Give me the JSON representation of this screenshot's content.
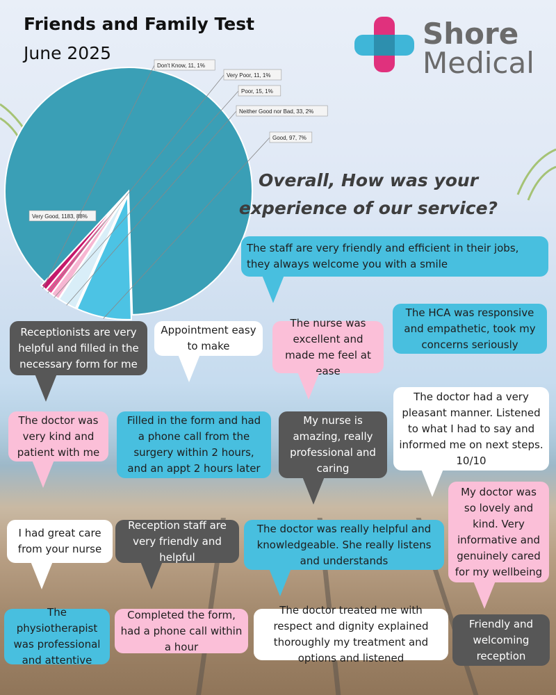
{
  "header": {
    "title": "Friends and Family Test",
    "subtitle": "June 2025"
  },
  "logo": {
    "line1": "Shore",
    "line2": "Medical",
    "cross_colors": [
      "#e0317d",
      "#3fb6d8"
    ]
  },
  "question": {
    "line1": "Overall, How was your",
    "line2": "experience of our service?"
  },
  "chart_data": {
    "type": "pie",
    "slices": [
      {
        "label": "Very Good, 1183, 88%",
        "value": 1183,
        "color": "#3a9fb6"
      },
      {
        "label": "Good, 97, 7%",
        "value": 97,
        "color": "#4cc3e4"
      },
      {
        "label": "Neither Good nor Bad, 33, 2%",
        "value": 33,
        "color": "#d9eef8"
      },
      {
        "label": "Poor, 15, 1%",
        "value": 15,
        "color": "#f7b6d2"
      },
      {
        "label": "Very Poor, 11, 1%",
        "value": 11,
        "color": "#e84f93"
      },
      {
        "label": "Don't Know, 11, 1%",
        "value": 11,
        "color": "#c4186a"
      }
    ]
  },
  "comments": [
    "The staff are very friendly and efficient in their jobs, they always welcome you with a smile",
    "The HCA was responsive and empathetic, took my concerns seriously",
    "Receptionists are very helpful and filled in the necessary form for me",
    "Appointment easy to make",
    "The nurse was excellent and made me feel at ease",
    "The doctor had a very pleasant manner. Listened to what I had to say and informed me on next steps. 10/10",
    "The doctor was very kind and patient with me",
    "Filled in the form and had a phone call from the surgery within 2 hours, and an appt 2 hours later",
    "My nurse is amazing, really professional and caring",
    "My doctor was so lovely and kind. Very informative and genuinely cared for my wellbeing",
    "I had great care from your nurse",
    "Reception staff are very friendly and helpful",
    "The doctor was really helpful and knowledgeable. She really listens and understands",
    "The physiotherapist was professional and attentive",
    "Completed the form, had a phone call within a hour",
    "The doctor treated me with respect and dignity explained thoroughly my treatment and options and listened",
    "Friendly and welcoming reception"
  ]
}
